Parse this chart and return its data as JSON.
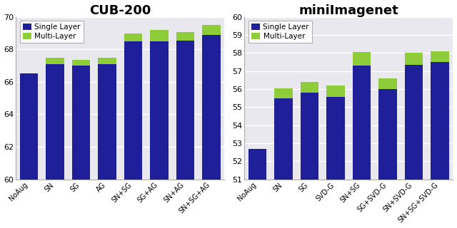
{
  "cub": {
    "title": "CUB-200",
    "categories": [
      "NoAug",
      "SN",
      "SG",
      "AG",
      "SN+SG",
      "SG+AG",
      "SN+AG",
      "SN+SG+AG"
    ],
    "single": [
      66.5,
      67.1,
      67.0,
      67.1,
      68.5,
      68.5,
      68.55,
      68.9
    ],
    "multi": [
      0.0,
      0.4,
      0.35,
      0.4,
      0.5,
      0.7,
      0.5,
      0.6
    ],
    "ylim": [
      60,
      70
    ],
    "yticks": [
      60,
      62,
      64,
      66,
      68,
      70
    ]
  },
  "mini": {
    "title": "miniImagenet",
    "categories": [
      "NoAug",
      "SN",
      "SG",
      "SVD-G",
      "SN+SG",
      "SG+SVD-G",
      "SN+SVD-G",
      "SN+SG+SVD-G"
    ],
    "single": [
      52.7,
      55.5,
      55.8,
      55.55,
      57.3,
      56.0,
      57.35,
      57.5
    ],
    "multi": [
      0.0,
      0.55,
      0.6,
      0.65,
      0.75,
      0.6,
      0.65,
      0.6
    ],
    "ylim": [
      51,
      60
    ],
    "yticks": [
      51,
      52,
      53,
      54,
      55,
      56,
      57,
      58,
      59,
      60
    ]
  },
  "single_color": "#1f1f99",
  "multi_color": "#8fcc3a",
  "bar_width": 0.7,
  "legend_fontsize": 7.5,
  "title_fontsize": 13,
  "tick_fontsize": 8,
  "xtick_fontsize": 7,
  "bg_color": "#e8e8ee",
  "grid_color": "white"
}
